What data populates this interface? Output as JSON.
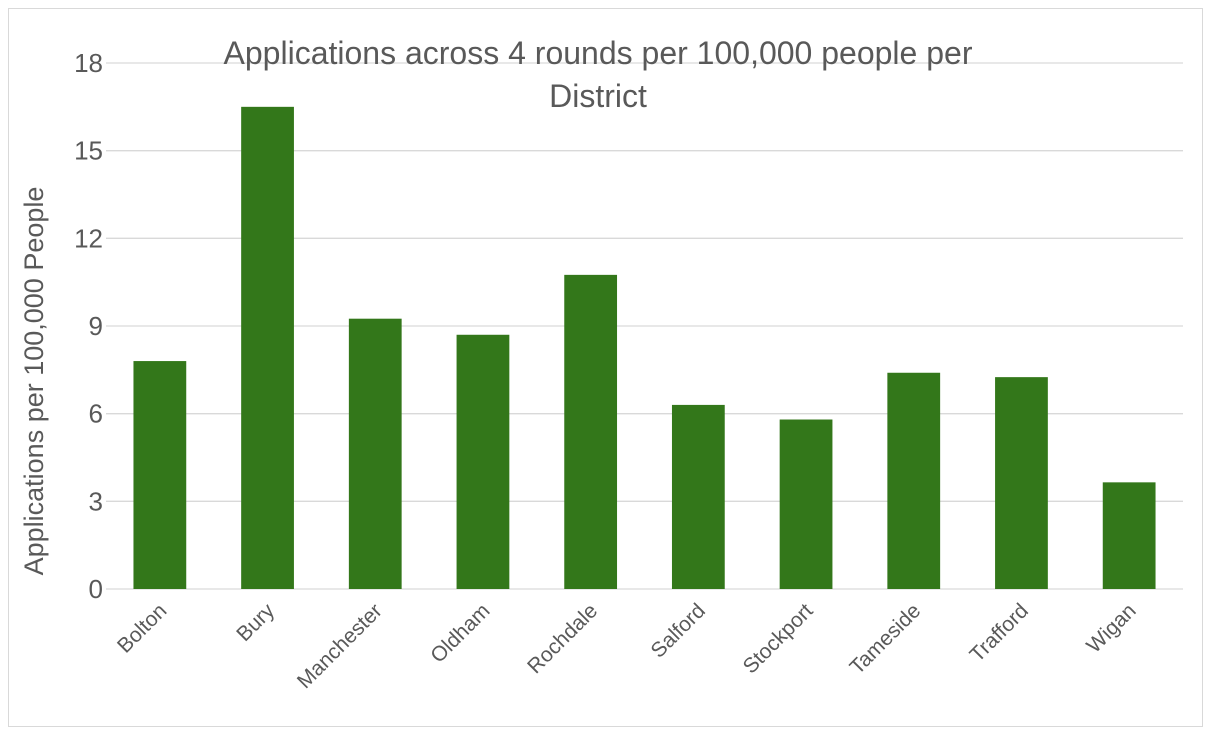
{
  "chart_data": {
    "type": "bar",
    "title_lines": [
      "Applications across 4 rounds per 100,000 people per",
      "District"
    ],
    "xlabel": "",
    "ylabel": "Applications per 100,000 People",
    "categories": [
      "Bolton",
      "Bury",
      "Manchester",
      "Oldham",
      "Rochdale",
      "Salford",
      "Stockport",
      "Tameside",
      "Trafford",
      "Wigan"
    ],
    "values": [
      7.8,
      16.5,
      9.25,
      8.7,
      10.75,
      6.3,
      5.8,
      7.4,
      7.25,
      3.65
    ],
    "ylim": [
      0,
      18
    ],
    "yticks": [
      0,
      3,
      6,
      9,
      12,
      15,
      18
    ],
    "grid": true,
    "legend": "none",
    "bar_color": "#33771a"
  }
}
